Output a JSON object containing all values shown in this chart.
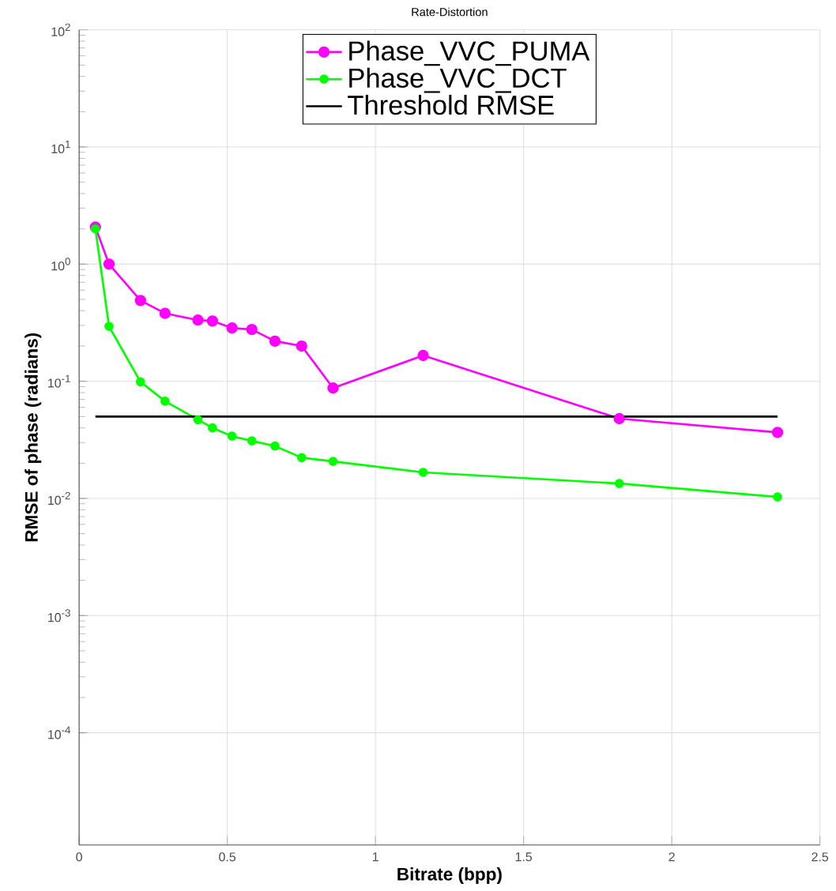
{
  "chart_data": {
    "type": "line",
    "title": "Rate-Distortion",
    "xlabel": "Bitrate (bpp)",
    "ylabel": "RMSE of phase (radians)",
    "log": "y",
    "grid": true,
    "legend": "top",
    "marker": "circle",
    "line_style": "solid",
    "xlim": [
      0,
      2.5
    ],
    "xticks": [
      0,
      0.5,
      1,
      1.5,
      2,
      2.5
    ],
    "ylim": [
      1.1e-05,
      100
    ],
    "yticks": [
      {
        "value": 0.0001,
        "label": "10$^{-4}$"
      },
      {
        "value": 0.001,
        "label": "10$^{-3}$"
      },
      {
        "value": 0.01,
        "label": "10$^{-2}$"
      },
      {
        "value": 0.1,
        "label": "10$^{-1}$"
      },
      {
        "value": 1,
        "label": "10$^{0}$"
      },
      {
        "value": 10,
        "label": "10$^{1}$"
      },
      {
        "value": 100,
        "label": "10$^{2}$"
      }
    ],
    "series": [
      {
        "name": "Phase_VVC_PUMA",
        "color": "#ff00ff",
        "x": [
          0.055,
          0.101,
          0.207,
          0.29,
          0.401,
          0.45,
          0.516,
          0.583,
          0.661,
          0.751,
          0.857,
          1.161,
          1.823,
          2.357
        ],
        "values": [
          2.07,
          1.0,
          0.49,
          0.38,
          0.333,
          0.327,
          0.285,
          0.277,
          0.22,
          0.2,
          0.0875,
          0.166,
          0.048,
          0.0366
        ]
      },
      {
        "name": "Phase_VVC_DCT",
        "color": "#00ff00",
        "x": [
          0.055,
          0.101,
          0.207,
          0.29,
          0.401,
          0.45,
          0.516,
          0.583,
          0.661,
          0.751,
          0.857,
          1.161,
          1.823,
          2.357
        ],
        "values": [
          2.0,
          0.294,
          0.099,
          0.0676,
          0.047,
          0.04,
          0.034,
          0.031,
          0.028,
          0.0223,
          0.0207,
          0.0167,
          0.0134,
          0.0103
        ]
      },
      {
        "name": "Threshold RMSE",
        "color": "#000000",
        "marker": "none",
        "x": [
          0.055,
          2.357
        ],
        "values": [
          0.05,
          0.05
        ]
      }
    ]
  }
}
